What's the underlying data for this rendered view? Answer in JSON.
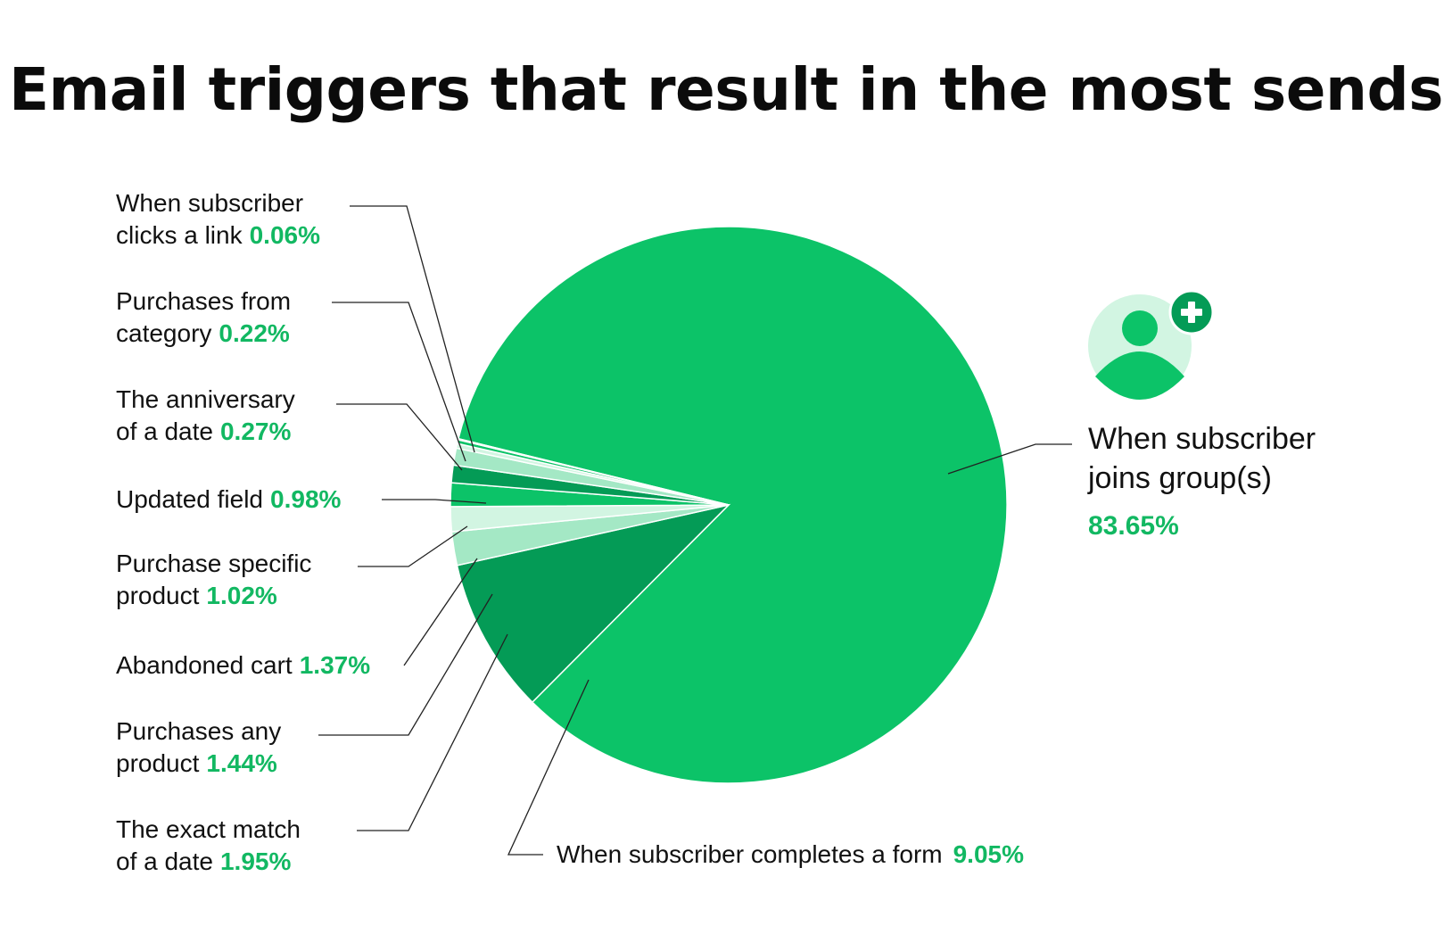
{
  "title": "Email triggers that result in the most sends",
  "colors": {
    "green": "#0cc368",
    "dark_green": "#049b56",
    "light_green": "#a4e8c5",
    "pale_green": "#d2f5e2",
    "percent_text": "#12b862"
  },
  "icon": {
    "name": "user-add-icon"
  },
  "chart_data": {
    "type": "pie",
    "unit": "%",
    "slices": [
      {
        "label": "When subscriber joins group(s)",
        "value": 83.65,
        "display": "83.65%",
        "color": "#0cc368"
      },
      {
        "label": "When subscriber completes a form",
        "value": 9.05,
        "display": "9.05%",
        "color": "#049b56"
      },
      {
        "label": "The exact match of a date",
        "value": 1.95,
        "display": "1.95%",
        "color": "#a4e8c5"
      },
      {
        "label": "Purchases any product",
        "value": 1.44,
        "display": "1.44%",
        "color": "#d2f5e2"
      },
      {
        "label": "Abandoned cart",
        "value": 1.37,
        "display": "1.37%",
        "color": "#0cc368"
      },
      {
        "label": "Purchase specific product",
        "value": 1.02,
        "display": "1.02%",
        "color": "#049b56"
      },
      {
        "label": "Updated field",
        "value": 0.98,
        "display": "0.98%",
        "color": "#a4e8c5"
      },
      {
        "label": "The anniversary of a date",
        "value": 0.27,
        "display": "0.27%",
        "color": "#d2f5e2"
      },
      {
        "label": "Purchases from category",
        "value": 0.22,
        "display": "0.22%",
        "color": "#0cc368"
      },
      {
        "label": "When subscriber clicks a link",
        "value": 0.06,
        "display": "0.06%",
        "color": "#049b56"
      }
    ],
    "legend": {
      "clicks_link": {
        "line1": "When subscriber",
        "line2": "clicks a link",
        "pct": "0.06%"
      },
      "category": {
        "line1": "Purchases from",
        "line2": "category",
        "pct": "0.22%"
      },
      "anniversary": {
        "line1": "The anniversary",
        "line2": "of a date",
        "pct": "0.27%"
      },
      "updated": {
        "line1": "Updated field",
        "pct": "0.98%"
      },
      "specific": {
        "line1": "Purchase specific",
        "line2": "product",
        "pct": "1.02%"
      },
      "cart": {
        "line1": "Abandoned cart",
        "pct": "1.37%"
      },
      "any": {
        "line1": "Purchases any",
        "line2": "product",
        "pct": "1.44%"
      },
      "exact": {
        "line1": "The exact match",
        "line2": "of a date",
        "pct": "1.95%"
      },
      "form": {
        "line1": "When subscriber completes a form",
        "pct": "9.05%"
      },
      "joins": {
        "line1": "When subscriber",
        "line2": "joins group(s)",
        "pct": "83.65%"
      }
    }
  }
}
